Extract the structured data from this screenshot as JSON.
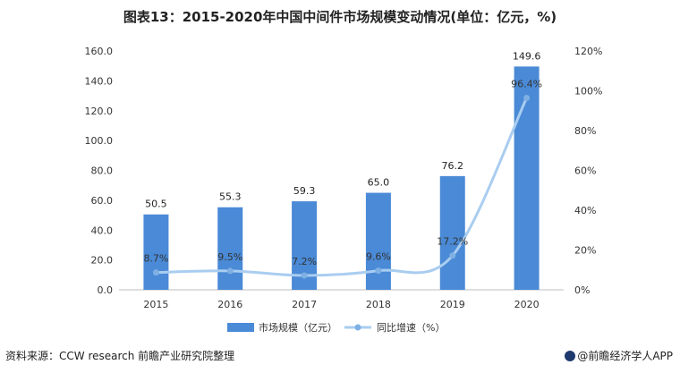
{
  "title": "图表13：2015-2020年中国中间件市场规模变动情况(单位：亿元，%)",
  "source": "资料来源：CCW research 前瞻产业研究院整理",
  "brand": "@前瞻经济学人APP",
  "colors": {
    "bar": "#4a8ad6",
    "line": "#a9cdf0",
    "marker": "#7fb0e4"
  },
  "chart_data": {
    "type": "bar",
    "categories": [
      "2015",
      "2016",
      "2017",
      "2018",
      "2019",
      "2020"
    ],
    "y_ticks": [
      "0.0",
      "20.0",
      "40.0",
      "60.0",
      "80.0",
      "100.0",
      "120.0",
      "140.0",
      "160.0"
    ],
    "y2_ticks": [
      "0%",
      "20%",
      "40%",
      "60%",
      "80%",
      "100%",
      "120%"
    ],
    "ylim": [
      0,
      160
    ],
    "y2lim": [
      0,
      120
    ],
    "series": [
      {
        "name": "市场规模（亿元）",
        "type": "bar",
        "axis": "left",
        "values": [
          50.5,
          55.3,
          59.3,
          65.0,
          76.2,
          149.6
        ],
        "labels": [
          "50.5",
          "55.3",
          "59.3",
          "65.0",
          "76.2",
          "149.6"
        ]
      },
      {
        "name": "同比增速（%）",
        "type": "line",
        "axis": "right",
        "values": [
          8.7,
          9.5,
          7.2,
          9.6,
          17.2,
          96.4
        ],
        "labels": [
          "8.7%",
          "9.5%",
          "7.2%",
          "9.6%",
          "17.2%",
          "96.4%"
        ]
      }
    ],
    "legend": "bottom",
    "grid": false
  }
}
